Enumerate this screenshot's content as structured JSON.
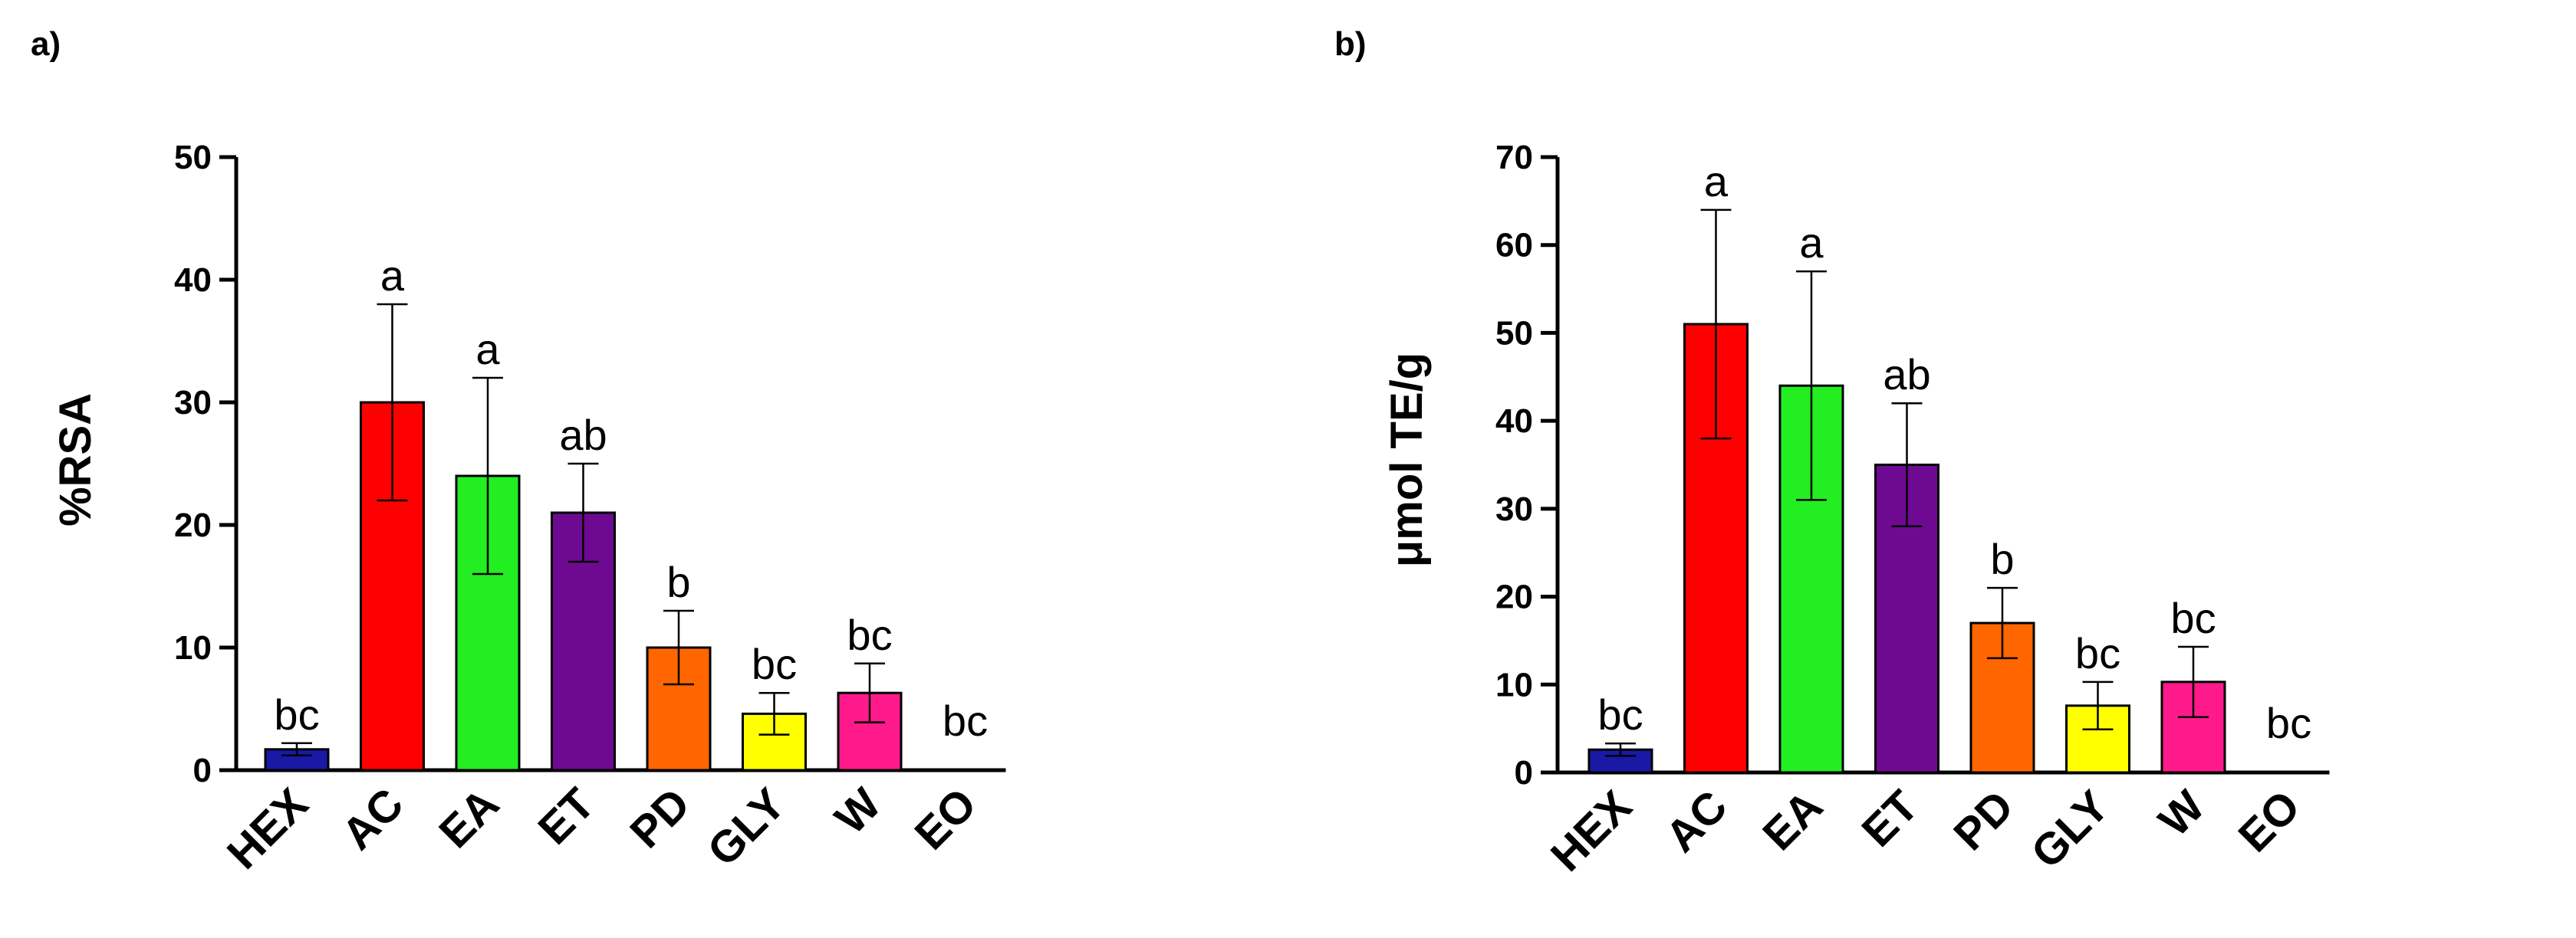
{
  "colors": {
    "HEX": "#1919a6",
    "AC": "#ff0000",
    "EA": "#22ee22",
    "ET": "#6e0a91",
    "PD": "#ff6600",
    "GLY": "#ffff00",
    "W": "#ff1a8c",
    "EO": "#ffffff",
    "axis": "#000000"
  },
  "chart_data": [
    {
      "panel": "a)",
      "type": "bar",
      "title": "",
      "xlabel": "",
      "ylabel": "%RSA",
      "ylim": [
        0,
        50
      ],
      "yticks": [
        0,
        10,
        20,
        30,
        40,
        50
      ],
      "categories": [
        "HEX",
        "AC",
        "EA",
        "ET",
        "PD",
        "GLY",
        "W",
        "EO"
      ],
      "values": [
        1.7,
        30,
        24,
        21,
        10,
        4.6,
        6.3,
        0
      ],
      "errors": [
        0.5,
        8,
        8,
        4,
        3,
        1.7,
        2.4,
        0
      ],
      "significance": [
        "bc",
        "a",
        "a",
        "ab",
        "b",
        "bc",
        "bc",
        "bc"
      ]
    },
    {
      "panel": "b)",
      "type": "bar",
      "title": "",
      "xlabel": "",
      "ylabel": "μmol TE/g",
      "ylim": [
        0,
        70
      ],
      "yticks": [
        0,
        10,
        20,
        30,
        40,
        50,
        60,
        70
      ],
      "categories": [
        "HEX",
        "AC",
        "EA",
        "ET",
        "PD",
        "GLY",
        "W",
        "EO"
      ],
      "values": [
        2.6,
        51,
        44,
        35,
        17,
        7.6,
        10.3,
        0
      ],
      "errors": [
        0.7,
        13,
        13,
        7,
        4,
        2.7,
        4,
        0
      ],
      "significance": [
        "bc",
        "a",
        "a",
        "ab",
        "b",
        "bc",
        "bc",
        "bc"
      ]
    }
  ]
}
